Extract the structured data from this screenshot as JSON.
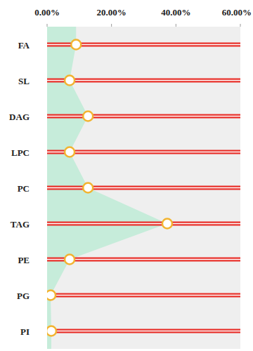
{
  "chart_data": {
    "type": "lollipop",
    "orientation": "horizontal",
    "categories": [
      "FA",
      "SL",
      "DAG",
      "LPC",
      "PC",
      "TAG",
      "PE",
      "PG",
      "PI"
    ],
    "values": [
      9,
      7,
      12.7,
      7,
      12.7,
      37.3,
      7,
      1.1,
      1.3
    ],
    "color": "#c6ecda",
    "marker": "circle",
    "xlim": [
      0,
      60
    ],
    "xticks": [
      {
        "value": 0,
        "label": "0.00%"
      },
      {
        "value": 20,
        "label": "20.00%"
      },
      {
        "value": 40,
        "label": "40.00%"
      },
      {
        "value": 60,
        "label": "60.00%"
      }
    ],
    "grid": false
  }
}
